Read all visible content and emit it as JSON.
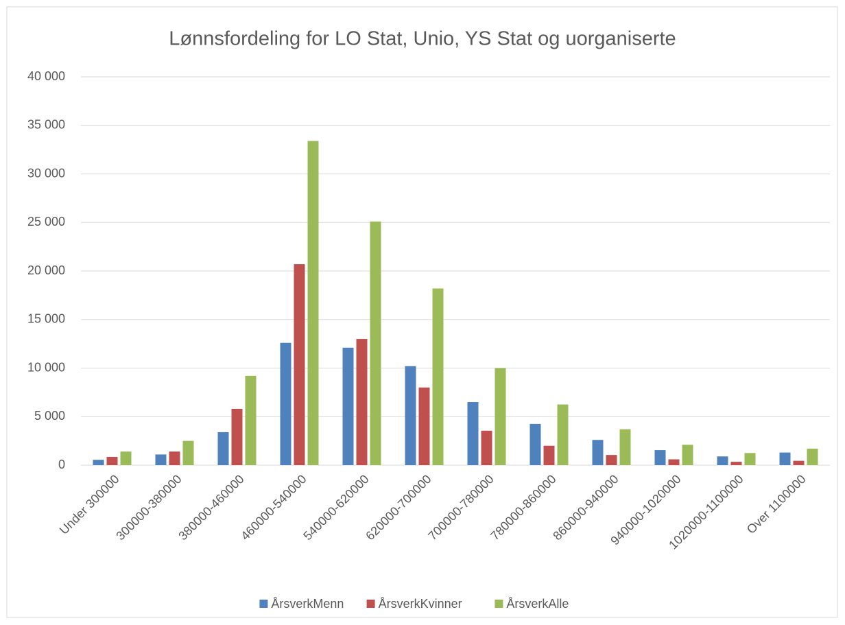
{
  "chart_data": {
    "type": "bar",
    "title": "Lønnsfordeling for LO Stat, Unio, YS Stat og uorganiserte",
    "categories": [
      "Under 300000",
      "300000-380000",
      "380000-460000",
      "460000-540000",
      "540000-620000",
      "620000-700000",
      "700000-780000",
      "780000-860000",
      "860000-940000",
      "940000-1020000",
      "1020000-1100000",
      "Over 1100000"
    ],
    "series": [
      {
        "name": "ÅrsverkMenn",
        "color": "#4f81bd",
        "values": [
          550,
          1100,
          3400,
          12600,
          12100,
          10200,
          6500,
          4250,
          2600,
          1550,
          900,
          1300
        ]
      },
      {
        "name": "ÅrsverkKvinner",
        "color": "#c0504d",
        "values": [
          850,
          1400,
          5800,
          20700,
          13000,
          8000,
          3550,
          2000,
          1050,
          600,
          350,
          450
        ]
      },
      {
        "name": "ÅrsverkAlle",
        "color": "#9bbb59",
        "values": [
          1400,
          2500,
          9200,
          33400,
          25100,
          18200,
          10000,
          6250,
          3700,
          2100,
          1250,
          1700
        ]
      }
    ],
    "ylim": [
      0,
      40000
    ],
    "yticks": [
      0,
      {
        "value": 5000,
        "label": "5 000"
      },
      {
        "value": 10000,
        "label": "10 000"
      },
      {
        "value": 15000,
        "label": "15 000"
      },
      {
        "value": 20000,
        "label": "20 000"
      },
      {
        "value": 25000,
        "label": "25 000"
      },
      {
        "value": 30000,
        "label": "30 000"
      },
      {
        "value": 35000,
        "label": "35 000"
      },
      {
        "value": 40000,
        "label": "40 000"
      }
    ],
    "grid": true,
    "legend": "bottom"
  }
}
